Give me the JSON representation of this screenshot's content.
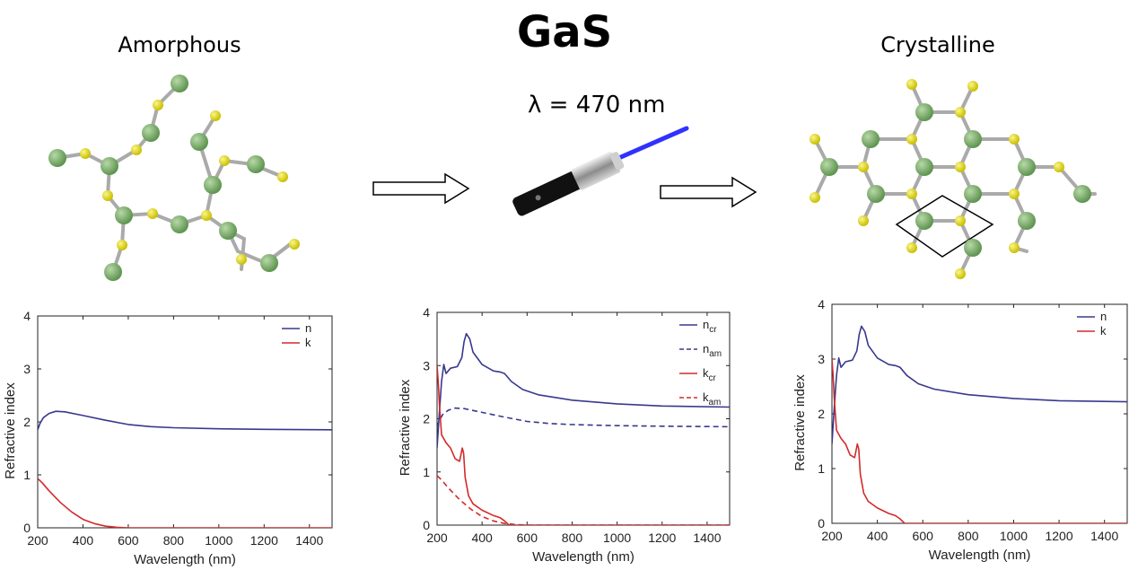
{
  "header": {
    "title": "GaS",
    "left_label": "Amorphous",
    "right_label": "Crystalline",
    "wavelength_label": "λ = 470 nm"
  },
  "colors": {
    "n_line": "#38388f",
    "k_line": "#d32a2a",
    "green_atom": "#6fa35c",
    "yellow_atom": "#d8d000",
    "bond": "#aaaaaa"
  },
  "chart_data": [
    {
      "type": "line",
      "xlabel": "Wavelength (nm)",
      "ylabel": "Refractive index",
      "xlim": [
        200,
        1500
      ],
      "ylim": [
        0,
        4
      ],
      "xticks": [
        200,
        400,
        600,
        800,
        1000,
        1200,
        1400
      ],
      "yticks": [
        0,
        1,
        2,
        3,
        4
      ],
      "legend_position": "top-right",
      "series": [
        {
          "name": "n",
          "color": "#38388f",
          "dash": false,
          "points": [
            [
              200,
              1.85
            ],
            [
              210,
              1.97
            ],
            [
              225,
              2.08
            ],
            [
              250,
              2.16
            ],
            [
              280,
              2.2
            ],
            [
              320,
              2.19
            ],
            [
              400,
              2.12
            ],
            [
              500,
              2.03
            ],
            [
              600,
              1.95
            ],
            [
              700,
              1.91
            ],
            [
              800,
              1.89
            ],
            [
              1000,
              1.87
            ],
            [
              1200,
              1.86
            ],
            [
              1500,
              1.85
            ]
          ]
        },
        {
          "name": "k",
          "color": "#d32a2a",
          "dash": false,
          "points": [
            [
              200,
              0.93
            ],
            [
              220,
              0.85
            ],
            [
              250,
              0.7
            ],
            [
              300,
              0.48
            ],
            [
              350,
              0.3
            ],
            [
              400,
              0.16
            ],
            [
              450,
              0.08
            ],
            [
              500,
              0.03
            ],
            [
              550,
              0.01
            ],
            [
              600,
              0.0
            ],
            [
              800,
              0.0
            ],
            [
              1500,
              0.0
            ]
          ]
        }
      ]
    },
    {
      "type": "line",
      "xlabel": "Wavelength (nm)",
      "ylabel": "Refractive index",
      "xlim": [
        200,
        1500
      ],
      "ylim": [
        0,
        4
      ],
      "xticks": [
        200,
        400,
        600,
        800,
        1000,
        1200,
        1400
      ],
      "yticks": [
        0,
        1,
        2,
        3,
        4
      ],
      "legend_position": "top-right",
      "series": [
        {
          "name": "n",
          "sub": "cr",
          "color": "#38388f",
          "dash": false,
          "points": [
            [
              200,
              1.45
            ],
            [
              210,
              2.1
            ],
            [
              220,
              2.7
            ],
            [
              230,
              3.02
            ],
            [
              240,
              2.85
            ],
            [
              260,
              2.95
            ],
            [
              290,
              2.98
            ],
            [
              310,
              3.15
            ],
            [
              320,
              3.45
            ],
            [
              330,
              3.6
            ],
            [
              345,
              3.5
            ],
            [
              360,
              3.25
            ],
            [
              400,
              3.02
            ],
            [
              450,
              2.9
            ],
            [
              480,
              2.88
            ],
            [
              500,
              2.85
            ],
            [
              530,
              2.7
            ],
            [
              580,
              2.55
            ],
            [
              650,
              2.45
            ],
            [
              800,
              2.35
            ],
            [
              1000,
              2.28
            ],
            [
              1200,
              2.24
            ],
            [
              1500,
              2.22
            ]
          ]
        },
        {
          "name": "n",
          "sub": "am",
          "color": "#38388f",
          "dash": true,
          "points": [
            [
              200,
              1.85
            ],
            [
              210,
              1.97
            ],
            [
              225,
              2.08
            ],
            [
              250,
              2.16
            ],
            [
              280,
              2.2
            ],
            [
              320,
              2.19
            ],
            [
              400,
              2.12
            ],
            [
              500,
              2.03
            ],
            [
              600,
              1.95
            ],
            [
              700,
              1.91
            ],
            [
              800,
              1.89
            ],
            [
              1000,
              1.87
            ],
            [
              1200,
              1.86
            ],
            [
              1500,
              1.85
            ]
          ]
        },
        {
          "name": "k",
          "sub": "cr",
          "color": "#d32a2a",
          "dash": false,
          "points": [
            [
              200,
              3.0
            ],
            [
              205,
              2.7
            ],
            [
              210,
              2.3
            ],
            [
              220,
              1.7
            ],
            [
              240,
              1.55
            ],
            [
              260,
              1.45
            ],
            [
              280,
              1.25
            ],
            [
              300,
              1.2
            ],
            [
              312,
              1.45
            ],
            [
              318,
              1.35
            ],
            [
              325,
              0.9
            ],
            [
              340,
              0.55
            ],
            [
              360,
              0.4
            ],
            [
              400,
              0.28
            ],
            [
              450,
              0.18
            ],
            [
              480,
              0.14
            ],
            [
              500,
              0.08
            ],
            [
              520,
              0.0
            ],
            [
              600,
              0.0
            ],
            [
              1500,
              0.0
            ]
          ]
        },
        {
          "name": "k",
          "sub": "am",
          "color": "#d32a2a",
          "dash": true,
          "points": [
            [
              200,
              0.93
            ],
            [
              220,
              0.85
            ],
            [
              250,
              0.7
            ],
            [
              300,
              0.48
            ],
            [
              350,
              0.3
            ],
            [
              400,
              0.16
            ],
            [
              450,
              0.08
            ],
            [
              500,
              0.03
            ],
            [
              550,
              0.01
            ],
            [
              600,
              0.0
            ],
            [
              800,
              0.0
            ],
            [
              1500,
              0.0
            ]
          ]
        }
      ]
    },
    {
      "type": "line",
      "xlabel": "Wavelength (nm)",
      "ylabel": "Refractive index",
      "xlim": [
        200,
        1500
      ],
      "ylim": [
        0,
        4
      ],
      "xticks": [
        200,
        400,
        600,
        800,
        1000,
        1200,
        1400
      ],
      "yticks": [
        0,
        1,
        2,
        3,
        4
      ],
      "legend_position": "top-right",
      "series": [
        {
          "name": "n",
          "color": "#38388f",
          "dash": false,
          "points": [
            [
              200,
              1.45
            ],
            [
              210,
              2.1
            ],
            [
              220,
              2.7
            ],
            [
              230,
              3.02
            ],
            [
              240,
              2.85
            ],
            [
              260,
              2.95
            ],
            [
              290,
              2.98
            ],
            [
              310,
              3.15
            ],
            [
              320,
              3.45
            ],
            [
              330,
              3.6
            ],
            [
              345,
              3.5
            ],
            [
              360,
              3.25
            ],
            [
              400,
              3.02
            ],
            [
              450,
              2.9
            ],
            [
              480,
              2.88
            ],
            [
              500,
              2.85
            ],
            [
              530,
              2.7
            ],
            [
              580,
              2.55
            ],
            [
              650,
              2.45
            ],
            [
              800,
              2.35
            ],
            [
              1000,
              2.28
            ],
            [
              1200,
              2.24
            ],
            [
              1500,
              2.22
            ]
          ]
        },
        {
          "name": "k",
          "color": "#d32a2a",
          "dash": false,
          "points": [
            [
              200,
              3.0
            ],
            [
              205,
              2.7
            ],
            [
              210,
              2.3
            ],
            [
              220,
              1.7
            ],
            [
              240,
              1.55
            ],
            [
              260,
              1.45
            ],
            [
              280,
              1.25
            ],
            [
              300,
              1.2
            ],
            [
              312,
              1.45
            ],
            [
              318,
              1.35
            ],
            [
              325,
              0.9
            ],
            [
              340,
              0.55
            ],
            [
              360,
              0.4
            ],
            [
              400,
              0.28
            ],
            [
              450,
              0.18
            ],
            [
              480,
              0.14
            ],
            [
              500,
              0.08
            ],
            [
              520,
              0.0
            ],
            [
              600,
              0.0
            ],
            [
              1500,
              0.0
            ]
          ]
        }
      ]
    }
  ]
}
